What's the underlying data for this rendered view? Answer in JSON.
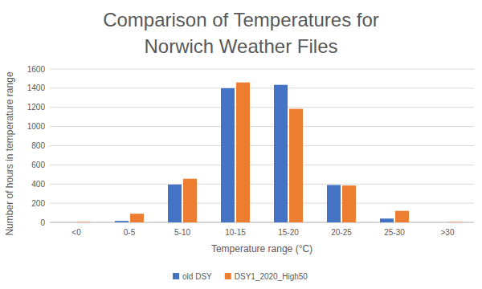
{
  "chart_data": {
    "type": "bar",
    "title": "Comparison of Temperatures for Norwich Weather Files",
    "y_label": "Number of hours in temperature range",
    "x_label": "Temperature range (°C)",
    "categories": [
      "<0",
      "0-5",
      "5-10",
      "10-15",
      "15-20",
      "20-25",
      "25-30",
      ">30"
    ],
    "series": [
      {
        "name": "old DSY",
        "color": "#4472c4",
        "values": [
          0,
          15,
          395,
          1400,
          1435,
          390,
          40,
          0
        ]
      },
      {
        "name": "DSY1_2020_High50",
        "color": "#ed7d31",
        "values": [
          3,
          90,
          455,
          1460,
          1185,
          385,
          120,
          3
        ]
      }
    ],
    "ylim": [
      0,
      1600
    ],
    "yticks": [
      0,
      200,
      400,
      600,
      800,
      1000,
      1200,
      1400,
      1600
    ],
    "grid": true,
    "legend": "bottom"
  }
}
